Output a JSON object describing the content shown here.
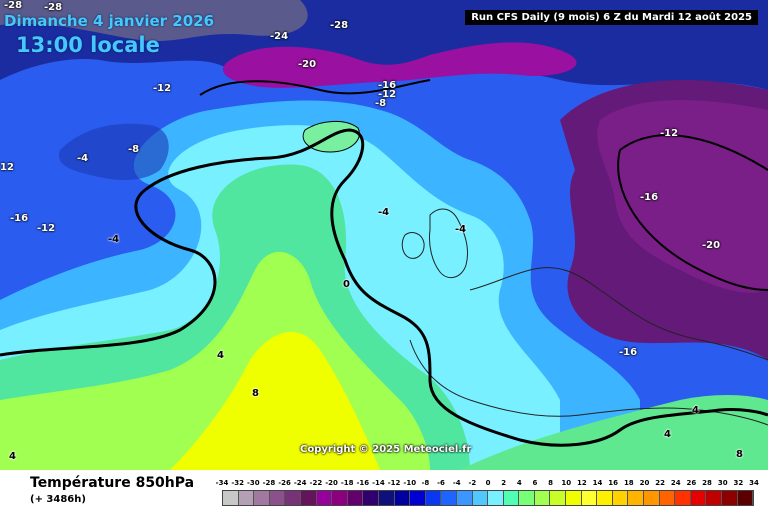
{
  "map": {
    "date": "Dimanche 4 janvier 2026",
    "local_time": "13:00 locale",
    "run_info": "Run CFS Daily (9 mois) 6 Z du Mardi 12 août 2025",
    "copyright": "Copyright © 2025 Meteociel.fr",
    "contour_labels": [
      "-28",
      "-28",
      "-28",
      "-24",
      "-20",
      "-16",
      "-12",
      "-8",
      "-12",
      "-12",
      "-4",
      "-8",
      "12",
      "-16",
      "-12",
      "-4",
      "-4",
      "-4",
      "-16",
      "-20",
      "0",
      "4",
      "8",
      "-16",
      "4",
      "4",
      "4",
      "8"
    ]
  },
  "footer": {
    "title": "Température 850hPa",
    "lead_time": "(+ 3486h)"
  },
  "legend": {
    "ticks": [
      "-34",
      "-32",
      "-30",
      "-28",
      "-26",
      "-24",
      "-22",
      "-20",
      "-18",
      "-16",
      "-14",
      "-12",
      "-10",
      "-8",
      "-6",
      "-4",
      "-2",
      "0",
      "2",
      "4",
      "6",
      "8",
      "10",
      "12",
      "14",
      "16",
      "18",
      "20",
      "22",
      "24",
      "26",
      "28",
      "30",
      "32",
      "34"
    ],
    "colors": [
      "#c8c8c8",
      "#b4a0b4",
      "#a078a0",
      "#8c508c",
      "#783278",
      "#64145a",
      "#96009b",
      "#8c0080",
      "#64006e",
      "#32006e",
      "#10107a",
      "#0000a0",
      "#0000d2",
      "#0a37f0",
      "#1e64ff",
      "#3c96ff",
      "#50c8ff",
      "#78f0ff",
      "#50ffb4",
      "#78ff78",
      "#a0ff50",
      "#c8ff28",
      "#f0ff00",
      "#ffff32",
      "#fff000",
      "#ffd200",
      "#ffb400",
      "#ff9600",
      "#ff6400",
      "#ff3200",
      "#e60000",
      "#be0000",
      "#8c0000",
      "#5a0000"
    ]
  }
}
